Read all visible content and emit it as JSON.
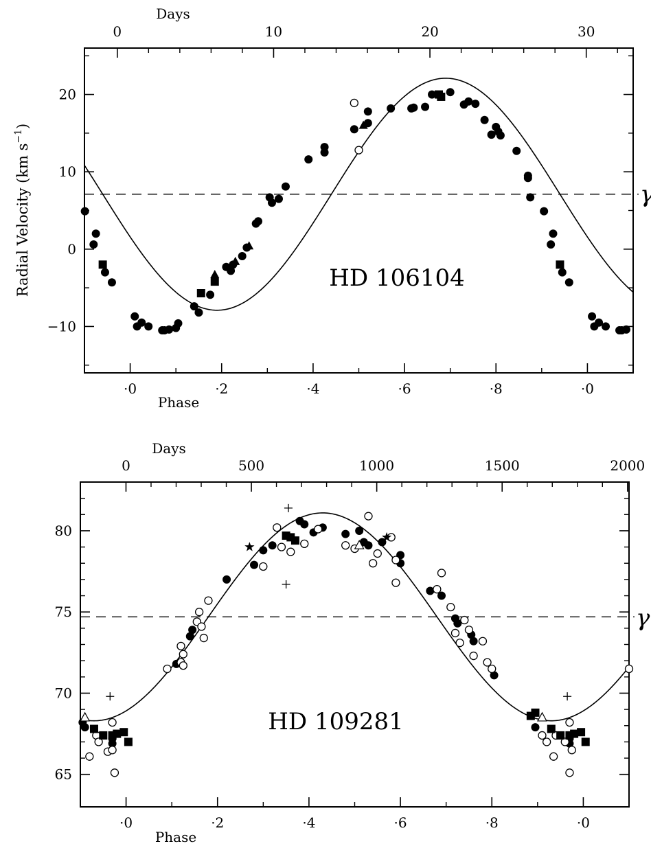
{
  "chart_data": [
    {
      "type": "scatter",
      "star": "HD 106104",
      "ylabel": "Radial Velocity (km s−1)",
      "ylabel_main": "Radial Velocity (km s",
      "ylabel_exp": "−1",
      "ylabel_close": ")",
      "bottom_axis_label": "Phase",
      "top_axis_label": "Days",
      "gamma_label": "γ",
      "gamma": 7.1,
      "phase_range": [
        -0.1,
        1.1
      ],
      "ylim": [
        -16,
        26
      ],
      "days_range": [
        -2.1,
        33.0
      ],
      "period_days": 29.2,
      "phase_ticks": [
        {
          "v": 0.0,
          "label": "·0"
        },
        {
          "v": 0.2,
          "label": "·2"
        },
        {
          "v": 0.4,
          "label": "·4"
        },
        {
          "v": 0.6,
          "label": "·6"
        },
        {
          "v": 0.8,
          "label": "·8"
        },
        {
          "v": 1.0,
          "label": "·0"
        }
      ],
      "phase_minor": [
        -0.1,
        0.1,
        0.3,
        0.5,
        0.7,
        0.9,
        1.1
      ],
      "y_ticks": [
        {
          "v": -10,
          "label": "−10"
        },
        {
          "v": 0,
          "label": "0"
        },
        {
          "v": 10,
          "label": "10"
        },
        {
          "v": 20,
          "label": "20"
        }
      ],
      "y_minor": [
        -15,
        -5,
        5,
        15,
        25
      ],
      "day_ticks": [
        {
          "v": 0,
          "label": "0"
        },
        {
          "v": 10,
          "label": "10"
        },
        {
          "v": 20,
          "label": "20"
        },
        {
          "v": 30,
          "label": "30"
        }
      ],
      "day_minor": [
        2,
        4,
        6,
        8,
        12,
        14,
        16,
        18,
        22,
        24,
        26,
        28,
        32
      ],
      "curve": {
        "amplitude": 15.0,
        "phase_of_max": 0.69
      },
      "series": [
        {
          "marker": "filled-circle",
          "points": [
            [
              -0.099,
              4.9
            ],
            [
              -0.08,
              0.6
            ],
            [
              -0.075,
              2.0
            ],
            [
              -0.055,
              -3.0
            ],
            [
              -0.04,
              -4.3
            ],
            [
              0.01,
              -8.7
            ],
            [
              0.015,
              -10.0
            ],
            [
              0.025,
              -9.5
            ],
            [
              0.04,
              -10.0
            ],
            [
              0.07,
              -10.5
            ],
            [
              0.075,
              -10.5
            ],
            [
              0.085,
              -10.4
            ],
            [
              0.1,
              -10.2
            ],
            [
              0.105,
              -9.6
            ],
            [
              0.14,
              -7.4
            ],
            [
              0.15,
              -8.2
            ],
            [
              0.175,
              -5.9
            ],
            [
              0.21,
              -2.3
            ],
            [
              0.22,
              -2.8
            ],
            [
              0.225,
              -2.0
            ],
            [
              0.245,
              -0.9
            ],
            [
              0.255,
              0.2
            ],
            [
              0.275,
              3.3
            ],
            [
              0.28,
              3.6
            ],
            [
              0.305,
              6.7
            ],
            [
              0.31,
              6.0
            ],
            [
              0.325,
              6.5
            ],
            [
              0.34,
              8.1
            ],
            [
              0.39,
              11.6
            ],
            [
              0.425,
              12.5
            ],
            [
              0.425,
              13.2
            ],
            [
              0.49,
              15.5
            ],
            [
              0.52,
              17.8
            ],
            [
              0.52,
              16.3
            ],
            [
              0.57,
              18.2
            ],
            [
              0.615,
              18.2
            ],
            [
              0.62,
              18.3
            ],
            [
              0.645,
              18.4
            ],
            [
              0.66,
              20.0
            ],
            [
              0.7,
              20.3
            ],
            [
              0.73,
              18.7
            ],
            [
              0.74,
              19.1
            ],
            [
              0.755,
              18.8
            ],
            [
              0.775,
              16.7
            ],
            [
              0.79,
              14.8
            ],
            [
              0.8,
              15.8
            ],
            [
              0.805,
              15.2
            ],
            [
              0.81,
              14.7
            ],
            [
              0.845,
              12.7
            ],
            [
              0.87,
              9.5
            ],
            [
              0.87,
              9.2
            ],
            [
              0.875,
              6.7
            ],
            [
              0.905,
              4.9
            ],
            [
              0.92,
              0.6
            ],
            [
              0.925,
              2.0
            ],
            [
              0.945,
              -3.0
            ],
            [
              0.96,
              -4.3
            ],
            [
              1.01,
              -8.7
            ],
            [
              1.015,
              -10.0
            ],
            [
              1.025,
              -9.5
            ],
            [
              1.04,
              -10.0
            ],
            [
              1.07,
              -10.5
            ],
            [
              1.075,
              -10.5
            ],
            [
              1.085,
              -10.4
            ]
          ]
        },
        {
          "marker": "open-circle",
          "points": [
            [
              0.49,
              18.9
            ],
            [
              0.5,
              12.8
            ]
          ]
        },
        {
          "marker": "filled-square",
          "points": [
            [
              -0.06,
              -2.0
            ],
            [
              0.155,
              -5.7
            ],
            [
              0.185,
              -4.2
            ],
            [
              0.68,
              19.7
            ],
            [
              0.675,
              20.0
            ],
            [
              0.94,
              -2.0
            ]
          ]
        },
        {
          "marker": "filled-triangle",
          "points": [
            [
              0.185,
              -3.3
            ],
            [
              0.23,
              -1.6
            ],
            [
              0.26,
              0.4
            ],
            [
              0.51,
              16.0
            ]
          ]
        }
      ]
    },
    {
      "type": "scatter",
      "star": "HD 109281",
      "bottom_axis_label": "Phase",
      "top_axis_label": "Days",
      "gamma_label": "γ",
      "gamma": 74.7,
      "phase_range": [
        -0.1,
        1.1
      ],
      "ylim": [
        63,
        83
      ],
      "days_range": [
        -182,
        2006
      ],
      "period_days": 1823,
      "phase_ticks": [
        {
          "v": 0.0,
          "label": "·0"
        },
        {
          "v": 0.2,
          "label": "·2"
        },
        {
          "v": 0.4,
          "label": "·4"
        },
        {
          "v": 0.6,
          "label": "·6"
        },
        {
          "v": 0.8,
          "label": "·8"
        },
        {
          "v": 1.0,
          "label": "·0"
        }
      ],
      "phase_minor": [
        -0.1,
        0.1,
        0.3,
        0.5,
        0.7,
        0.9,
        1.1
      ],
      "y_ticks": [
        {
          "v": 65,
          "label": "65"
        },
        {
          "v": 70,
          "label": "70"
        },
        {
          "v": 75,
          "label": "75"
        },
        {
          "v": 80,
          "label": "80"
        }
      ],
      "y_minor": [
        66,
        67,
        68,
        69,
        71,
        72,
        73,
        74,
        76,
        77,
        78,
        79,
        81,
        82
      ],
      "day_ticks": [
        {
          "v": 0,
          "label": "0"
        },
        {
          "v": 500,
          "label": "500"
        },
        {
          "v": 1000,
          "label": "1000"
        },
        {
          "v": 1500,
          "label": "1500"
        },
        {
          "v": 2000,
          "label": "2000"
        }
      ],
      "day_minor": [
        100,
        200,
        300,
        400,
        600,
        700,
        800,
        900,
        1100,
        1200,
        1300,
        1400,
        1600,
        1700,
        1800,
        1900
      ],
      "curve": {
        "amplitude": 6.4,
        "phase_of_max": 0.43
      },
      "series": [
        {
          "marker": "filled-circle",
          "points": [
            [
              -0.095,
              68.2
            ],
            [
              -0.09,
              67.9
            ],
            [
              -0.03,
              66.9
            ],
            [
              -0.03,
              67.2
            ],
            [
              0.11,
              71.8
            ],
            [
              0.14,
              73.5
            ],
            [
              0.145,
              73.9
            ],
            [
              0.22,
              77.0
            ],
            [
              0.28,
              77.9
            ],
            [
              0.3,
              78.8
            ],
            [
              0.32,
              79.1
            ],
            [
              0.38,
              80.6
            ],
            [
              0.39,
              80.4
            ],
            [
              0.41,
              79.9
            ],
            [
              0.43,
              80.2
            ],
            [
              0.48,
              79.8
            ],
            [
              0.51,
              80.0
            ],
            [
              0.52,
              79.3
            ],
            [
              0.53,
              79.1
            ],
            [
              0.56,
              79.3
            ],
            [
              0.6,
              78.5
            ],
            [
              0.6,
              78.0
            ],
            [
              0.665,
              76.3
            ],
            [
              0.69,
              76.0
            ],
            [
              0.72,
              74.6
            ],
            [
              0.725,
              74.3
            ],
            [
              0.755,
              73.6
            ],
            [
              0.76,
              73.2
            ],
            [
              0.805,
              71.1
            ],
            [
              0.895,
              67.9
            ],
            [
              0.97,
              66.9
            ],
            [
              0.97,
              67.2
            ]
          ]
        },
        {
          "marker": "open-circle",
          "points": [
            [
              -0.08,
              66.1
            ],
            [
              -0.065,
              67.4
            ],
            [
              -0.06,
              67.0
            ],
            [
              -0.04,
              66.4
            ],
            [
              -0.03,
              68.2
            ],
            [
              -0.03,
              66.5
            ],
            [
              -0.025,
              65.1
            ],
            [
              0.09,
              71.5
            ],
            [
              0.12,
              71.9
            ],
            [
              0.12,
              72.9
            ],
            [
              0.125,
              72.4
            ],
            [
              0.125,
              71.7
            ],
            [
              0.155,
              74.4
            ],
            [
              0.16,
              75.0
            ],
            [
              0.165,
              74.1
            ],
            [
              0.17,
              73.4
            ],
            [
              0.18,
              75.7
            ],
            [
              0.3,
              77.8
            ],
            [
              0.33,
              80.2
            ],
            [
              0.34,
              79.0
            ],
            [
              0.36,
              78.7
            ],
            [
              0.39,
              79.2
            ],
            [
              0.42,
              80.1
            ],
            [
              0.48,
              79.1
            ],
            [
              0.5,
              78.9
            ],
            [
              0.53,
              80.9
            ],
            [
              0.54,
              78.0
            ],
            [
              0.55,
              78.6
            ],
            [
              0.58,
              79.6
            ],
            [
              0.59,
              78.2
            ],
            [
              0.59,
              76.8
            ],
            [
              0.68,
              76.4
            ],
            [
              0.69,
              77.4
            ],
            [
              0.71,
              75.3
            ],
            [
              0.72,
              73.7
            ],
            [
              0.73,
              73.1
            ],
            [
              0.74,
              74.5
            ],
            [
              0.75,
              73.9
            ],
            [
              0.76,
              72.3
            ],
            [
              0.78,
              73.2
            ],
            [
              0.79,
              71.9
            ],
            [
              0.8,
              71.5
            ],
            [
              0.91,
              67.4
            ],
            [
              0.92,
              67.0
            ],
            [
              0.935,
              66.1
            ],
            [
              0.94,
              67.4
            ],
            [
              0.96,
              67.0
            ],
            [
              0.97,
              68.2
            ],
            [
              0.975,
              66.5
            ],
            [
              0.97,
              65.1
            ],
            [
              1.1,
              71.5
            ]
          ]
        },
        {
          "marker": "filled-square",
          "points": [
            [
              -0.07,
              67.8
            ],
            [
              -0.05,
              67.4
            ],
            [
              -0.03,
              67.4
            ],
            [
              -0.02,
              67.5
            ],
            [
              -0.005,
              67.6
            ],
            [
              0.005,
              67.0
            ],
            [
              0.35,
              79.7
            ],
            [
              0.36,
              79.6
            ],
            [
              0.37,
              79.4
            ],
            [
              0.885,
              68.6
            ],
            [
              0.895,
              68.8
            ],
            [
              0.93,
              67.8
            ],
            [
              0.95,
              67.4
            ],
            [
              0.97,
              67.4
            ],
            [
              0.98,
              67.5
            ],
            [
              0.995,
              67.6
            ],
            [
              1.005,
              67.0
            ]
          ]
        },
        {
          "marker": "open-triangle",
          "points": [
            [
              -0.09,
              68.5
            ],
            [
              0.51,
              79.1
            ],
            [
              0.91,
              68.5
            ]
          ]
        },
        {
          "marker": "plus",
          "points": [
            [
              -0.035,
              69.8
            ],
            [
              0.35,
              76.7
            ],
            [
              0.355,
              81.4
            ],
            [
              0.965,
              69.8
            ]
          ]
        },
        {
          "marker": "star",
          "points": [
            [
              0.27,
              79.0
            ],
            [
              0.57,
              79.6
            ]
          ]
        }
      ]
    }
  ]
}
